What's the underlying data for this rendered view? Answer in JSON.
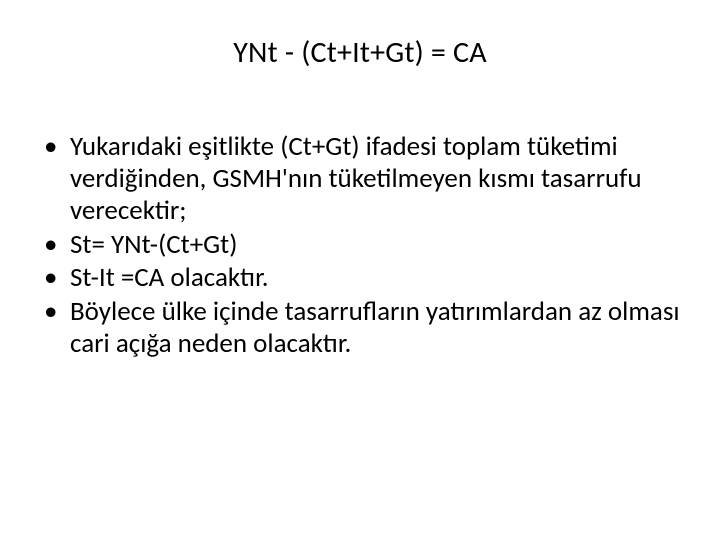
{
  "title": "YNt - (Ct+It+Gt)  = CA",
  "bullets": [
    "Yukarıdaki eşitlikte (Ct+Gt) ifadesi toplam tüketimi verdiğinden, GSMH'nın tüketilmeyen kısmı tasarrufu verecektir;",
    "St= YNt-(Ct+Gt)",
    "St-It =CA    olacaktır.",
    "Böylece ülke içinde tasarrufların yatırımlardan az olması cari açığa neden olacaktır."
  ],
  "colors": {
    "background": "#ffffff",
    "text": "#000000",
    "bullet": "#000000"
  },
  "typography": {
    "title_fontsize": 30,
    "body_fontsize": 27,
    "font_family": "Calibri",
    "title_weight": "normal",
    "body_weight": "normal"
  }
}
